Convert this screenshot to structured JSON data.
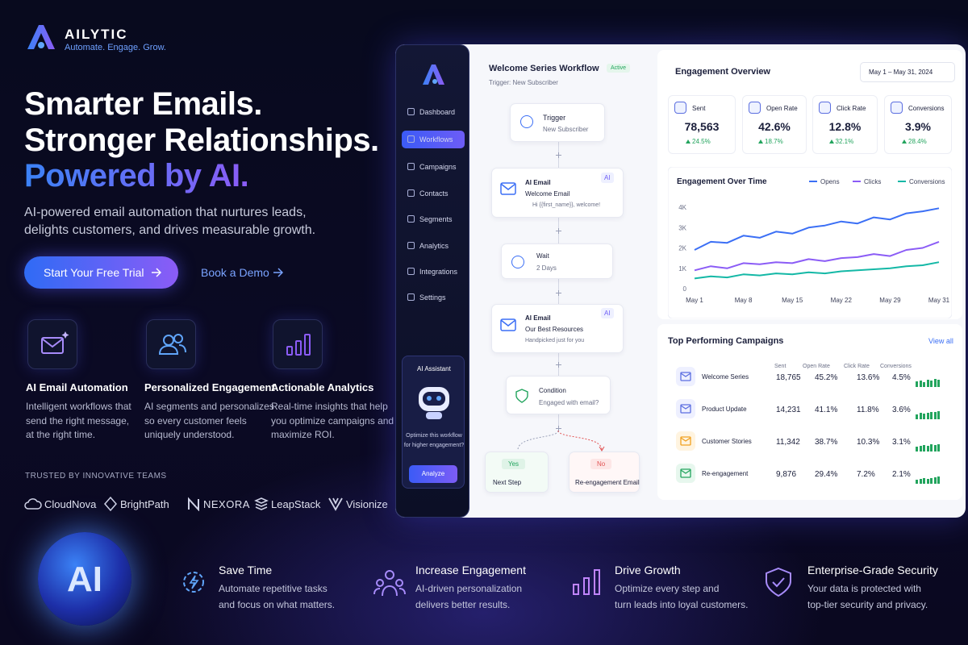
{
  "brand": {
    "name": "AILYTIC",
    "tagline": "Automate. Engage. Grow."
  },
  "hero": {
    "title_lines": [
      "Smarter Emails.",
      "Stronger Relationships."
    ],
    "title_highlight": "Powered by AI.",
    "subtitle_lines": [
      "AI-powered email automation that nurtures leads,",
      "delights customers, and drives measurable growth."
    ],
    "primary_cta": "Start Your Free Trial",
    "secondary_cta": "Book a Demo"
  },
  "features": [
    {
      "title": "AI Email Automation",
      "lines": [
        "Intelligent workflows that",
        "send the right message,",
        "at the right time."
      ]
    },
    {
      "title": "Personalized Engagement",
      "lines": [
        "AI segments and personalizes",
        "so every customer feels",
        "uniquely understood."
      ]
    },
    {
      "title": "Actionable Analytics",
      "lines": [
        "Real-time insights that help",
        "you optimize campaigns and",
        "maximize ROI."
      ]
    }
  ],
  "trusted": {
    "label": "TRUSTED BY INNOVATIVE TEAMS",
    "logos": [
      "CloudNova",
      "BrightPath",
      "NEXORA",
      "LeapStack",
      "Visionize"
    ]
  },
  "sidebar": {
    "items": [
      "Dashboard",
      "Workflows",
      "Campaigns",
      "Contacts",
      "Segments",
      "Analytics",
      "Integrations",
      "Settings"
    ],
    "assistant": {
      "title": "AI Assistant",
      "lines": [
        "Optimize this workflow",
        "for higher engagement?"
      ],
      "button": "Analyze"
    }
  },
  "workflow": {
    "title": "Welcome Series Workflow",
    "status": "Active",
    "trigger": "Trigger: New Subscriber",
    "nodes": [
      {
        "title": "Trigger",
        "lines": [
          "New Subscriber"
        ]
      },
      {
        "title": "AI Email",
        "badge": "AI",
        "lines": [
          "Welcome Email",
          "Hi {{first_name}}, welcome!"
        ]
      },
      {
        "title": "Wait",
        "lines": [
          "2 Days"
        ]
      },
      {
        "title": "AI Email",
        "badge": "AI",
        "lines": [
          "Our Best Resources",
          "Handpicked just for you"
        ]
      },
      {
        "title": "Condition",
        "lines": [
          "Engaged with email?"
        ]
      }
    ],
    "branches": [
      {
        "label": "Yes",
        "next": "Next Step"
      },
      {
        "label": "No",
        "next": "Re-engagement Email"
      }
    ]
  },
  "overview": {
    "title": "Engagement Overview",
    "date_range": "May 1 – May 31, 2024",
    "kpis": [
      {
        "label": "Sent",
        "value": "78,563",
        "change": "24.5%"
      },
      {
        "label": "Open Rate",
        "value": "42.6%",
        "change": "18.7%"
      },
      {
        "label": "Click Rate",
        "value": "12.8%",
        "change": "32.1%"
      },
      {
        "label": "Conversions",
        "value": "3.9%",
        "change": "28.4%"
      }
    ]
  },
  "chart_data": {
    "type": "line",
    "title": "Engagement Over Time",
    "categories": [
      "May 1",
      null,
      null,
      "May 8",
      null,
      null,
      "May 15",
      null,
      null,
      "May 22",
      null,
      null,
      "May 29",
      null,
      null,
      "May 31"
    ],
    "series": [
      {
        "name": "Opens",
        "color": "#3b6ff5",
        "values": [
          1900,
          2300,
          2250,
          2600,
          2500,
          2800,
          2700,
          3000,
          3100,
          3300,
          3200,
          3500,
          3400,
          3700,
          3800,
          3950
        ]
      },
      {
        "name": "Clicks",
        "color": "#8b5cf6",
        "values": [
          900,
          1100,
          1000,
          1250,
          1200,
          1300,
          1250,
          1450,
          1350,
          1500,
          1550,
          1700,
          1600,
          1900,
          2000,
          2300
        ]
      },
      {
        "name": "Conversions",
        "color": "#14b8a6",
        "values": [
          500,
          600,
          550,
          700,
          650,
          750,
          700,
          800,
          750,
          850,
          900,
          950,
          1000,
          1100,
          1150,
          1300
        ]
      }
    ],
    "ylim": [
      0,
      4000
    ],
    "yticks": [
      0,
      {
        "value": 1000,
        "label": "1K"
      },
      {
        "value": 2000,
        "label": "2K"
      },
      {
        "value": 3000,
        "label": "3K"
      },
      {
        "value": 4000,
        "label": "4K"
      }
    ],
    "grid": false,
    "legend": "top-right"
  },
  "campaigns": {
    "title": "Top Performing Campaigns",
    "link": "View all",
    "header": [
      "Sent",
      "Open Rate",
      "Click Rate",
      "Conversions"
    ],
    "rows": [
      [
        "Welcome Series",
        "18,765",
        "45.2%",
        "13.6%",
        "4.5%"
      ],
      [
        "Product Update",
        "14,231",
        "41.1%",
        "11.8%",
        "3.6%"
      ],
      [
        "Customer Stories",
        "11,342",
        "38.7%",
        "10.3%",
        "3.1%"
      ],
      [
        "Re-engagement",
        "9,876",
        "29.4%",
        "7.2%",
        "2.1%"
      ]
    ]
  },
  "orb_label": "AI",
  "benefits": [
    {
      "title": "Save Time",
      "lines": [
        "Automate repetitive tasks",
        "and focus on what matters."
      ]
    },
    {
      "title": "Increase Engagement",
      "lines": [
        "AI-driven personalization",
        "delivers better results."
      ]
    },
    {
      "title": "Drive Growth",
      "lines": [
        "Optimize every step and",
        "turn leads into loyal customers."
      ]
    },
    {
      "title": "Enterprise-Grade Security",
      "lines": [
        "Your data is protected with",
        "top-tier security and privacy."
      ]
    }
  ]
}
